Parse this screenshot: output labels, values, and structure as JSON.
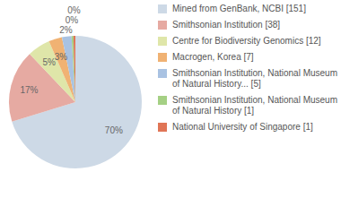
{
  "chart_data": {
    "type": "pie",
    "categories": [
      "Mined from GenBank, NCBI [151]",
      "Smithsonian Institution [38]",
      "Centre for Biodiversity Genomics [12]",
      "Macrogen, Korea [7]",
      "Smithsonian Institution, National Museum of Natural History... [5]",
      "Smithsonian Institution, National Museum of Natural History [1]",
      "National University of Singapore [1]"
    ],
    "values": [
      151,
      38,
      12,
      7,
      5,
      1,
      1
    ],
    "slice_labels": [
      "70%",
      "17%",
      "5%",
      "3%",
      "2%",
      "0%",
      "0%"
    ],
    "colors": [
      "#cdd9e6",
      "#e6aaa2",
      "#dfe6a9",
      "#f0b273",
      "#a9c2e2",
      "#a5d084",
      "#e07556"
    ],
    "legend": "right",
    "data_labels": true
  }
}
